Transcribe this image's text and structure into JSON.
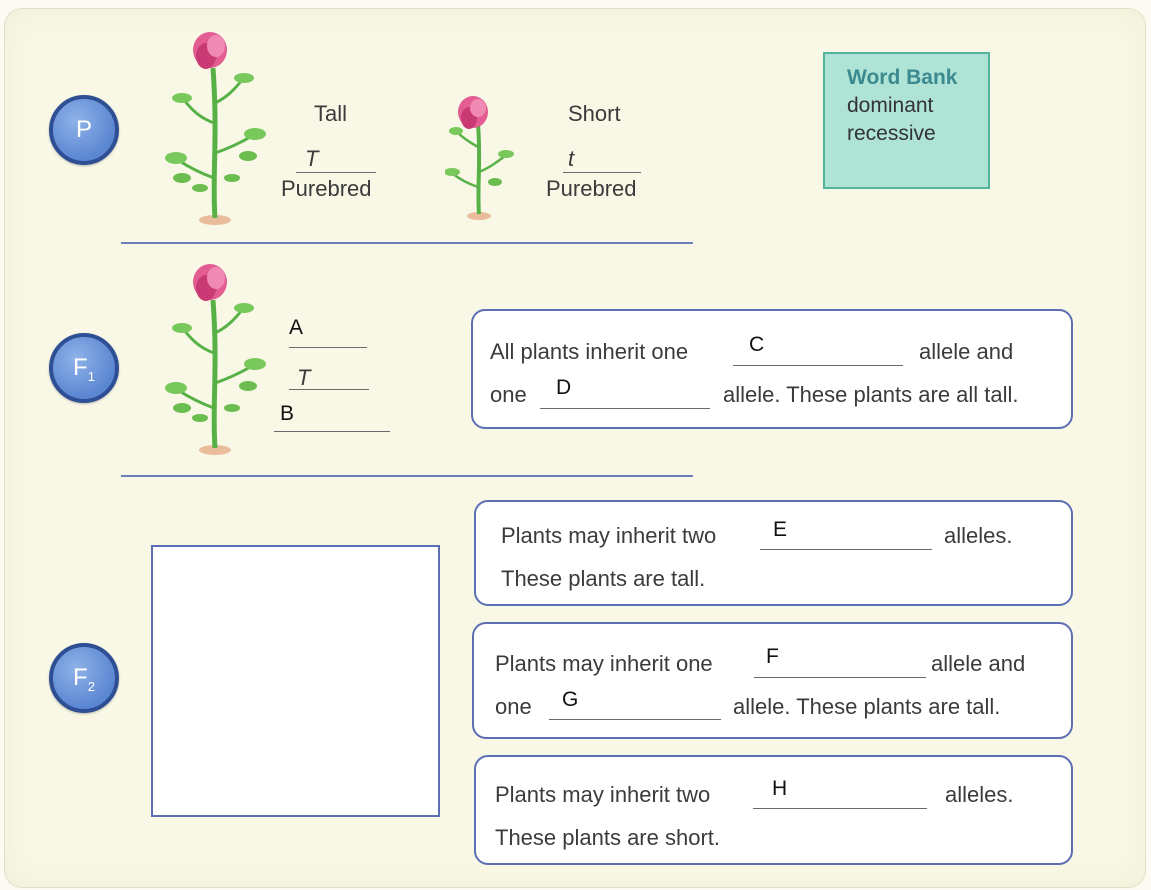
{
  "generations": {
    "p": {
      "label": "P",
      "sub": ""
    },
    "f1": {
      "label": "F",
      "sub": "1"
    },
    "f2": {
      "label": "F",
      "sub": "2"
    }
  },
  "parents": {
    "tall": {
      "title": "Tall",
      "allele": "T",
      "type": "Purebred"
    },
    "short": {
      "title": "Short",
      "allele": "t",
      "type": "Purebred"
    }
  },
  "word_bank": {
    "title": "Word Bank",
    "words": [
      "dominant",
      "recessive"
    ]
  },
  "f1": {
    "allele_given": "T",
    "label_a": "A",
    "label_b": "B",
    "box": {
      "line1_start": "All plants inherit one",
      "line1_end": "allele and",
      "line2_start": "one",
      "line2_end": "allele. These plants are all tall.",
      "blank_c": "C",
      "blank_d": "D"
    }
  },
  "f2": {
    "box_e": {
      "line1_start": "Plants may inherit two",
      "line1_end": "alleles.",
      "line2": "These plants are tall.",
      "blank": "E"
    },
    "box_fg": {
      "line1_start": "Plants may inherit one",
      "line1_end": "allele and",
      "line2_start": "one",
      "line2_end": "allele. These plants are tall.",
      "blank_f": "F",
      "blank_g": "G"
    },
    "box_h": {
      "line1_start": "Plants may inherit two",
      "line1_end": "alleles.",
      "line2": "These plants are short.",
      "blank": "H"
    }
  },
  "colors": {
    "badge": "#5b86d2",
    "accent_border": "#5d6fb3",
    "word_bank_bg": "#aee3d6",
    "flower": "#e35d92",
    "stem": "#5db64a"
  }
}
